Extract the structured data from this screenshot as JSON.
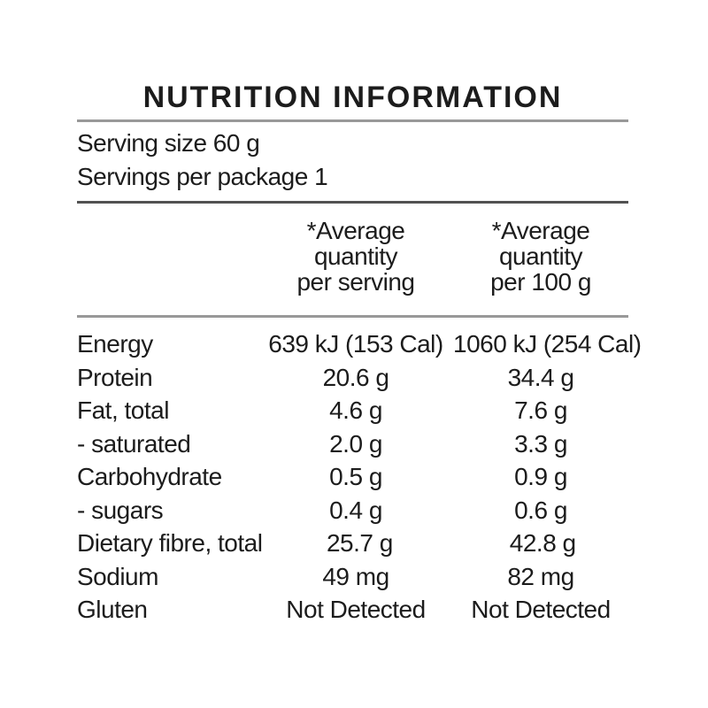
{
  "header": {
    "title": "NUTRITION INFORMATION"
  },
  "serving": {
    "size": "Serving size 60 g",
    "per_package": "Servings per package 1"
  },
  "columns": {
    "per_serving": {
      "line1": "*Average",
      "line2": "quantity",
      "line3": "per serving"
    },
    "per_100g": {
      "line1": "*Average",
      "line2": "quantity",
      "line3": "per 100 g"
    }
  },
  "rows": [
    {
      "label": "Energy",
      "per_serving": "639 kJ (153 Cal)",
      "per_100g": "1060 kJ (254 Cal)"
    },
    {
      "label": "Protein",
      "per_serving": "20.6 g",
      "per_100g": "34.4 g"
    },
    {
      "label": "Fat, total",
      "per_serving": "4.6 g",
      "per_100g": "7.6 g"
    },
    {
      "label": "- saturated",
      "per_serving": "2.0 g",
      "per_100g": "3.3 g"
    },
    {
      "label": "Carbohydrate",
      "per_serving": "0.5 g",
      "per_100g": "0.9 g"
    },
    {
      "label": "- sugars",
      "per_serving": "0.4 g",
      "per_100g": "0.6 g"
    },
    {
      "label": "Dietary fibre, total",
      "per_serving": "25.7 g",
      "per_100g": "42.8 g"
    },
    {
      "label": "Sodium",
      "per_serving": "49 mg",
      "per_100g": "82 mg"
    },
    {
      "label": "Gluten",
      "per_serving": "Not Detected",
      "per_100g": "Not Detected"
    }
  ],
  "colors": {
    "background": "#ffffff",
    "text": "#1c1c1c",
    "rule_light": "#999999",
    "rule_dark": "#525252"
  }
}
